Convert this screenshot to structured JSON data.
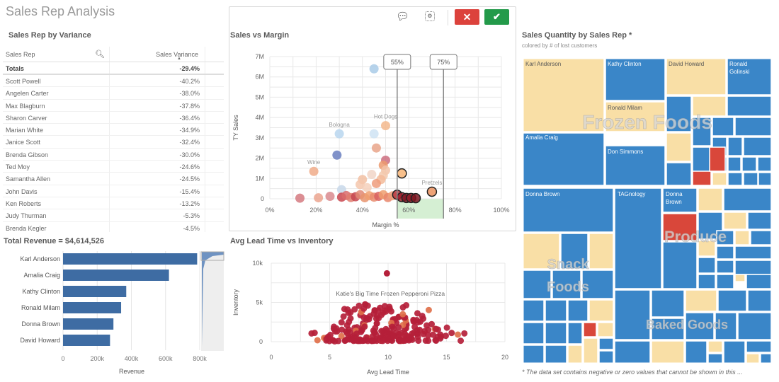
{
  "app": {
    "title": "Sales Rep Analysis"
  },
  "variance_table": {
    "title": "Sales Rep by Variance",
    "columns": [
      "Sales Rep",
      "Sales Variance"
    ],
    "totals_label": "Totals",
    "totals_value": "-29.4%",
    "rows": [
      {
        "name": "Scott Powell",
        "value": "-40.2%"
      },
      {
        "name": "Angelen Carter",
        "value": "-38.0%"
      },
      {
        "name": "Max Blagburn",
        "value": "-37.8%"
      },
      {
        "name": "Sharon Carver",
        "value": "-36.4%"
      },
      {
        "name": "Marian White",
        "value": "-34.9%"
      },
      {
        "name": "Janice Scott",
        "value": "-32.4%"
      },
      {
        "name": "Brenda Gibson",
        "value": "-30.0%"
      },
      {
        "name": "Ted Moy",
        "value": "-24.6%"
      },
      {
        "name": "Samantha Allen",
        "value": "-24.5%"
      },
      {
        "name": "John Davis",
        "value": "-15.4%"
      },
      {
        "name": "Ken Roberts",
        "value": "-13.2%"
      },
      {
        "name": "Judy Thurman",
        "value": "-5.3%"
      },
      {
        "name": "Brenda Kegler",
        "value": "-4.5%"
      }
    ]
  },
  "selection_toolbar": {
    "lasso_icon": "lasso-icon",
    "select_icon": "select-area-icon",
    "cancel_label": "✕",
    "confirm_label": "✔"
  },
  "footnote": "* The data set contains negative or zero values that cannot be shown in this ...",
  "chart_data": [
    {
      "type": "bar",
      "orientation": "horizontal",
      "title": "Total Revenue = $4,614,526",
      "categories": [
        "Karl Anderson",
        "Amalia Craig",
        "Kathy Clinton",
        "Ronald Milam",
        "Donna Brown",
        "David Howard"
      ],
      "values": [
        785000,
        620000,
        370000,
        340000,
        295000,
        275000
      ],
      "xlabel": "Revenue",
      "ylabel": "",
      "xlim": [
        0,
        800000
      ],
      "xticks": [
        "0",
        "200k",
        "400k",
        "600k",
        "800k"
      ],
      "grid": true,
      "color": "#3e6ca3"
    },
    {
      "type": "scatter",
      "title": "Sales vs Margin",
      "xlabel": "Margin %",
      "ylabel": "TY Sales",
      "xlim": [
        0,
        100
      ],
      "ylim": [
        0,
        7000000
      ],
      "xticks": [
        "0%",
        "20%",
        "40%",
        "60%",
        "80%",
        "100%"
      ],
      "yticks": [
        "0",
        "1M",
        "2M",
        "3M",
        "4M",
        "5M",
        "6M",
        "7M"
      ],
      "range_selection": {
        "min_label": "55%",
        "max_label": "75%",
        "min": 55,
        "max": 75
      },
      "annotations": [
        {
          "text": "Bologna",
          "x": 30,
          "y": 3200000
        },
        {
          "text": "Hot Dogs",
          "x": 50,
          "y": 3600000
        },
        {
          "text": "Wine",
          "x": 19,
          "y": 1350000
        },
        {
          "text": "Pretzels",
          "x": 70,
          "y": 350000
        }
      ],
      "points": [
        {
          "x": 45,
          "y": 6400000,
          "c": "#a9cbe8"
        },
        {
          "x": 30,
          "y": 3200000,
          "c": "#b9d6ee"
        },
        {
          "x": 45,
          "y": 3200000,
          "c": "#cfe3f3"
        },
        {
          "x": 50,
          "y": 3600000,
          "c": "#f3b98d"
        },
        {
          "x": 29,
          "y": 2150000,
          "c": "#6a7fc0"
        },
        {
          "x": 46,
          "y": 2500000,
          "c": "#e9a58a"
        },
        {
          "x": 50,
          "y": 1900000,
          "c": "#cc6f80"
        },
        {
          "x": 49,
          "y": 1650000,
          "c": "#ec9a6f"
        },
        {
          "x": 19,
          "y": 1350000,
          "c": "#f0ab8a"
        },
        {
          "x": 50,
          "y": 1400000,
          "c": "#f2c3a8"
        },
        {
          "x": 49,
          "y": 1150000,
          "c": "#f3c9ae"
        },
        {
          "x": 44,
          "y": 1200000,
          "c": "#f1d5c7"
        },
        {
          "x": 40,
          "y": 950000,
          "c": "#f2c0a2"
        },
        {
          "x": 48,
          "y": 950000,
          "c": "#f3bb9a"
        },
        {
          "x": 46,
          "y": 750000,
          "c": "#ee9c7c"
        },
        {
          "x": 39,
          "y": 700000,
          "c": "#f4c7ad"
        },
        {
          "x": 42,
          "y": 550000,
          "c": "#f5d0bb"
        },
        {
          "x": 31,
          "y": 450000,
          "c": "#c8d8ea"
        },
        {
          "x": 57,
          "y": 1250000,
          "c": "#f6b477",
          "outline": true
        },
        {
          "x": 70,
          "y": 350000,
          "c": "#ec9360",
          "outline": true
        },
        {
          "x": 13,
          "y": 30000,
          "c": "#d57a80"
        },
        {
          "x": 21,
          "y": 50000,
          "c": "#eba58f"
        },
        {
          "x": 26,
          "y": 120000,
          "c": "#d98a8e"
        },
        {
          "x": 31,
          "y": 80000,
          "c": "#c9474f"
        },
        {
          "x": 33,
          "y": 160000,
          "c": "#d96b6b"
        },
        {
          "x": 35,
          "y": 60000,
          "c": "#e07c6f"
        },
        {
          "x": 37,
          "y": 100000,
          "c": "#c5454d"
        },
        {
          "x": 39,
          "y": 200000,
          "c": "#e28a74"
        },
        {
          "x": 41,
          "y": 50000,
          "c": "#e8946e"
        },
        {
          "x": 43,
          "y": 150000,
          "c": "#f0a06e"
        },
        {
          "x": 45,
          "y": 80000,
          "c": "#e98c6e"
        },
        {
          "x": 47,
          "y": 120000,
          "c": "#d9605e"
        },
        {
          "x": 49,
          "y": 200000,
          "c": "#ef9d6f"
        },
        {
          "x": 51,
          "y": 60000,
          "c": "#e9866b"
        },
        {
          "x": 53,
          "y": 150000,
          "c": "#eea07a"
        },
        {
          "x": 55,
          "y": 200000,
          "c": "#b9373f",
          "outline": true
        },
        {
          "x": 57,
          "y": 80000,
          "c": "#9b1f2c",
          "outline": true
        },
        {
          "x": 59,
          "y": 40000,
          "c": "#7d1523",
          "outline": true
        },
        {
          "x": 61,
          "y": 40000,
          "c": "#8e1a26",
          "outline": true
        },
        {
          "x": 63,
          "y": 30000,
          "c": "#7a1420",
          "outline": true
        }
      ]
    },
    {
      "type": "scatter",
      "title": "Avg Lead Time vs Inventory",
      "xlabel": "Avg Lead Time",
      "ylabel": "Inventory",
      "xlim": [
        0,
        20
      ],
      "ylim": [
        0,
        10000
      ],
      "xticks": [
        "0",
        "5",
        "10",
        "15",
        "20"
      ],
      "yticks": [
        "0",
        "5k",
        "10k"
      ],
      "annotations": [
        {
          "text": "Katie's Big Time Frozen Pepperoni Pizza",
          "x": 10,
          "y": 8700
        }
      ],
      "highlight_point": {
        "x": 9.9,
        "y": 8700
      },
      "point_color": "#b5203a",
      "points_summary": "dense cluster of ~250 products between lead time 1.5–17 and inventory 0–5k, centered near x=10, y≈1k"
    },
    {
      "type": "heatmap",
      "subtype": "treemap",
      "title": "Sales Quantity by Sales Rep *",
      "subtitle": "colored by # of lost customers",
      "groups": [
        {
          "name": "Frozen Foods",
          "labels": [
            "Karl Anderson",
            "Kathy Clinton",
            "David Howard",
            "Ronald Golinski",
            "Ronald Milam",
            "Amalia Craig",
            "Don Simmons"
          ]
        },
        {
          "name": "Snack Foods",
          "labels": [
            "Donna Brown"
          ]
        },
        {
          "name": "Produce",
          "labels": [
            "TAGnology",
            "Donna Brown"
          ]
        },
        {
          "name": "Baked Goods",
          "labels": []
        }
      ],
      "color_legend": {
        "low": "#3a86c8",
        "mid": "#f9dfa6",
        "high": "#d9473a"
      }
    }
  ]
}
